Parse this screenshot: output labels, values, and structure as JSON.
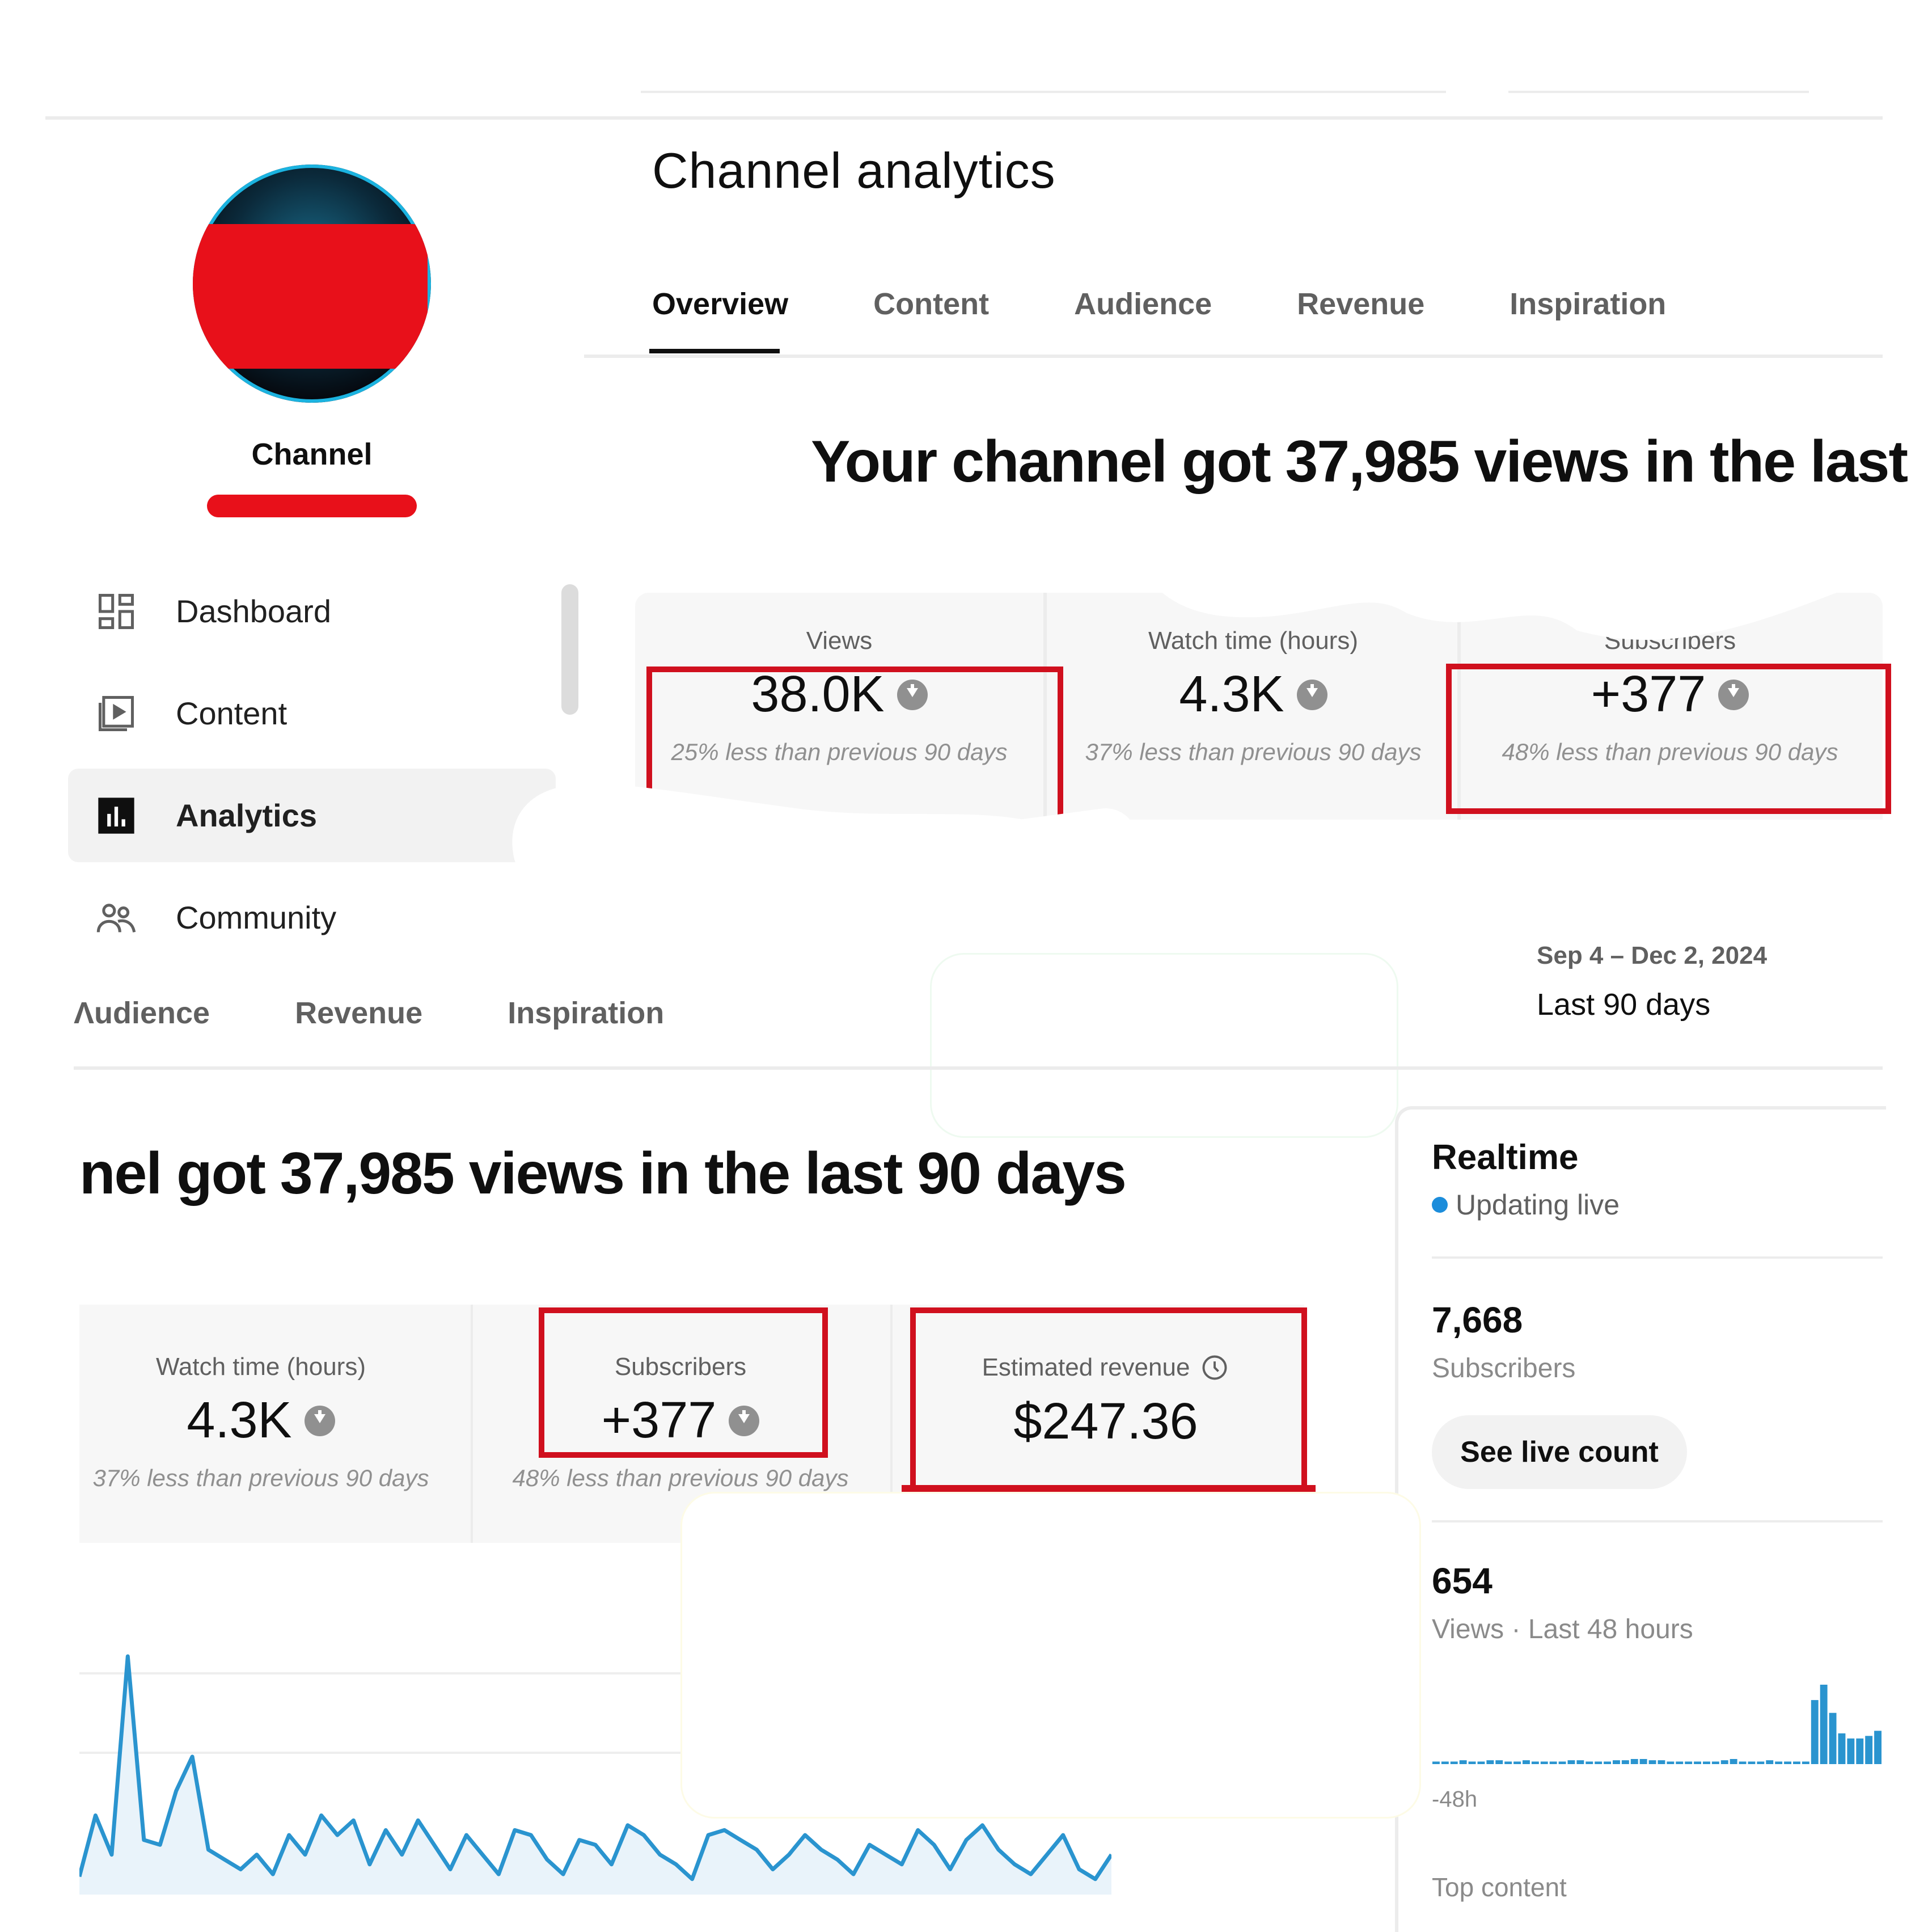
{
  "sidebar": {
    "channel_name": "Channel",
    "items": [
      {
        "label": "Dashboard",
        "icon": "dashboard-icon"
      },
      {
        "label": "Content",
        "icon": "content-icon"
      },
      {
        "label": "Analytics",
        "icon": "analytics-icon",
        "active": true
      },
      {
        "label": "Community",
        "icon": "community-icon"
      }
    ]
  },
  "header": {
    "title": "Channel analytics",
    "tabs": [
      "Overview",
      "Content",
      "Audience",
      "Revenue",
      "Inspiration"
    ],
    "active_tab": "Overview"
  },
  "overview": {
    "headline_top": "Your channel got 37,985 views in the last",
    "headline_bottom": "nel got 37,985 views in the last 90 days",
    "metrics": {
      "views": {
        "label": "Views",
        "value": "38.0K",
        "sub": "25% less than previous 90 days"
      },
      "watch_time": {
        "label": "Watch time (hours)",
        "value": "4.3K",
        "sub": "37% less than previous 90 days"
      },
      "subscribers": {
        "label": "Subscribers",
        "value": "+377",
        "sub": "48% less than previous 90 days",
        "sub_partial": "48% less than previous 90 days"
      },
      "revenue": {
        "label": "Estimated revenue",
        "value": "$247.36"
      }
    },
    "date_range": "Sep 4 – Dec 2, 2024",
    "period_label": "Last 90 days"
  },
  "tabs_bottom": [
    "Ʌudience",
    "Revenue",
    "Inspiration"
  ],
  "realtime": {
    "title": "Realtime",
    "status": "Updating live",
    "subscribers_value": "7,668",
    "subscribers_label": "Subscribers",
    "live_button": "See live count",
    "views_value": "654",
    "views_label": "Views · Last 48 hours",
    "axis_label": "-48h",
    "top_content_label": "Top content",
    "bars": [
      2,
      2,
      2,
      3,
      2,
      2,
      3,
      3,
      2,
      2,
      3,
      2,
      2,
      2,
      2,
      3,
      3,
      2,
      2,
      2,
      3,
      3,
      4,
      4,
      3,
      3,
      2,
      2,
      2,
      2,
      2,
      2,
      3,
      4,
      2,
      2,
      2,
      3,
      2,
      2,
      2,
      2,
      50,
      62,
      40,
      24,
      20,
      20,
      22,
      26
    ]
  },
  "views_chart": {
    "values": [
      5,
      30,
      14,
      95,
      20,
      18,
      40,
      54,
      16,
      12,
      8,
      14,
      6,
      22,
      14,
      30,
      22,
      28,
      10,
      24,
      14,
      28,
      18,
      8,
      22,
      14,
      6,
      24,
      22,
      12,
      6,
      20,
      18,
      10,
      26,
      22,
      14,
      10,
      4,
      22,
      24,
      20,
      16,
      8,
      14,
      22,
      16,
      12,
      6,
      18,
      14,
      10,
      24,
      18,
      8,
      20,
      26,
      16,
      10,
      6,
      14,
      22,
      8,
      4,
      14
    ]
  },
  "colors": {
    "accent_red": "#d0101e",
    "live_blue": "#1c8ddb",
    "chart_blue": "#2a94cf"
  }
}
